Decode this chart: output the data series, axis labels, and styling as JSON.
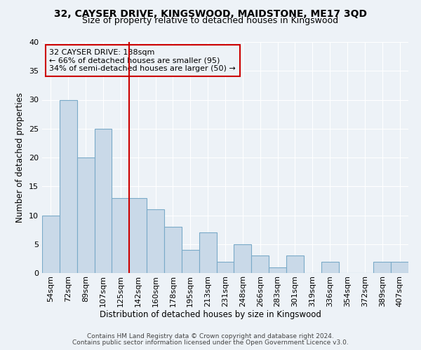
{
  "title1": "32, CAYSER DRIVE, KINGSWOOD, MAIDSTONE, ME17 3QD",
  "title2": "Size of property relative to detached houses in Kingswood",
  "xlabel": "Distribution of detached houses by size in Kingswood",
  "ylabel": "Number of detached properties",
  "categories": [
    "54sqm",
    "72sqm",
    "89sqm",
    "107sqm",
    "125sqm",
    "142sqm",
    "160sqm",
    "178sqm",
    "195sqm",
    "213sqm",
    "231sqm",
    "248sqm",
    "266sqm",
    "283sqm",
    "301sqm",
    "319sqm",
    "336sqm",
    "354sqm",
    "372sqm",
    "389sqm",
    "407sqm"
  ],
  "values": [
    10,
    30,
    20,
    25,
    13,
    13,
    11,
    8,
    4,
    7,
    2,
    5,
    3,
    1,
    3,
    0,
    2,
    0,
    0,
    2,
    2
  ],
  "bar_color": "#c9d9e8",
  "bar_edge_color": "#7aaac8",
  "annotation_line1": "32 CAYSER DRIVE: 138sqm",
  "annotation_line2": "← 66% of detached houses are smaller (95)",
  "annotation_line3": "34% of semi-detached houses are larger (50) →",
  "annotation_box_color": "#cc0000",
  "red_line_index": 5,
  "ylim": [
    0,
    40
  ],
  "yticks": [
    0,
    5,
    10,
    15,
    20,
    25,
    30,
    35,
    40
  ],
  "footer1": "Contains HM Land Registry data © Crown copyright and database right 2024.",
  "footer2": "Contains public sector information licensed under the Open Government Licence v3.0.",
  "bg_color": "#edf2f7",
  "grid_color": "#ffffff",
  "title1_fontsize": 10,
  "title2_fontsize": 9,
  "xlabel_fontsize": 8.5,
  "ylabel_fontsize": 8.5,
  "tick_fontsize": 8,
  "footer_fontsize": 6.5,
  "annot_fontsize": 8
}
